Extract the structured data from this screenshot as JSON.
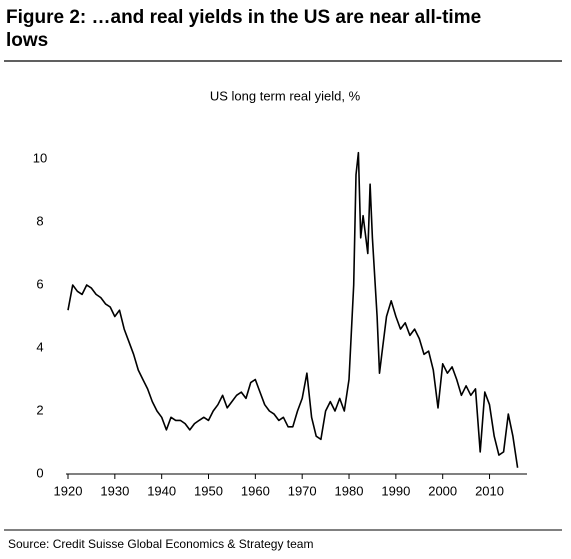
{
  "chart_data": {
    "type": "line",
    "title": "Figure 2: …and real yields in the US are near all-time lows",
    "subtitle": "US long term real yield, %",
    "source": "Source: Credit Suisse Global Economics & Strategy team",
    "x": [
      1920,
      1921,
      1922,
      1923,
      1924,
      1925,
      1926,
      1927,
      1928,
      1929,
      1930,
      1931,
      1932,
      1933,
      1934,
      1935,
      1936,
      1937,
      1938,
      1939,
      1940,
      1941,
      1942,
      1943,
      1944,
      1945,
      1946,
      1947,
      1948,
      1949,
      1950,
      1951,
      1952,
      1953,
      1954,
      1955,
      1956,
      1957,
      1958,
      1959,
      1960,
      1961,
      1962,
      1963,
      1964,
      1965,
      1966,
      1967,
      1968,
      1969,
      1970,
      1971,
      1972,
      1973,
      1974,
      1975,
      1976,
      1977,
      1978,
      1979,
      1980,
      1981,
      1981.5,
      1982,
      1982.5,
      1983,
      1984,
      1984.5,
      1985,
      1986,
      1986.5,
      1987,
      1988,
      1989,
      1990,
      1991,
      1992,
      1993,
      1994,
      1995,
      1996,
      1997,
      1998,
      1999,
      2000,
      2001,
      2002,
      2003,
      2004,
      2005,
      2006,
      2007,
      2008,
      2009,
      2010,
      2011,
      2012,
      2013,
      2014,
      2015,
      2016
    ],
    "series": [
      {
        "color": "#000000",
        "values": [
          5.2,
          6.0,
          5.8,
          5.7,
          6.0,
          5.9,
          5.7,
          5.6,
          5.4,
          5.3,
          5.0,
          5.2,
          4.6,
          4.2,
          3.8,
          3.3,
          3.0,
          2.7,
          2.3,
          2.0,
          1.8,
          1.4,
          1.8,
          1.7,
          1.7,
          1.6,
          1.4,
          1.6,
          1.7,
          1.8,
          1.7,
          2.0,
          2.2,
          2.5,
          2.1,
          2.3,
          2.5,
          2.6,
          2.4,
          2.9,
          3.0,
          2.6,
          2.2,
          2.0,
          1.9,
          1.7,
          1.8,
          1.5,
          1.5,
          2.0,
          2.4,
          3.2,
          1.8,
          1.2,
          1.1,
          2.0,
          2.3,
          2.0,
          2.4,
          2.0,
          3.0,
          6.0,
          9.5,
          10.2,
          7.5,
          8.2,
          7.0,
          9.2,
          7.5,
          5.0,
          3.2,
          3.8,
          5.0,
          5.5,
          5.0,
          4.6,
          4.8,
          4.4,
          4.6,
          4.3,
          3.8,
          3.9,
          3.3,
          2.1,
          3.5,
          3.2,
          3.4,
          3.0,
          2.5,
          2.8,
          2.5,
          2.7,
          0.7,
          2.6,
          2.2,
          1.2,
          0.6,
          0.7,
          1.9,
          1.2,
          0.2
        ]
      }
    ],
    "xlim": [
      1920,
      2018
    ],
    "xticks": [
      1920,
      1930,
      1940,
      1950,
      1960,
      1970,
      1980,
      1990,
      2000,
      2010
    ],
    "ylim": [
      0,
      10
    ],
    "yticks": [
      0,
      2,
      4,
      6,
      8,
      10
    ]
  }
}
